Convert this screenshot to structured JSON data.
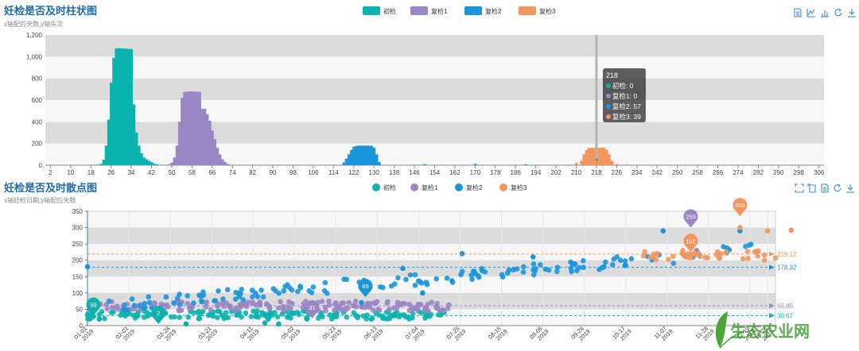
{
  "chart_data": [
    {
      "type": "bar",
      "title": "妊检是否及时柱状图",
      "subtitle": "x轴配后天数,y轴头次",
      "legend": [
        "初检",
        "复检1",
        "复检2",
        "复检3"
      ],
      "legend_position": "top-center",
      "toolbox_icons": [
        "data-view-icon",
        "line-icon",
        "bar-icon",
        "restore-icon",
        "download-icon"
      ],
      "x_ticks": [
        2,
        10,
        18,
        26,
        34,
        42,
        50,
        58,
        66,
        74,
        82,
        90,
        98,
        106,
        114,
        122,
        130,
        138,
        146,
        154,
        162,
        170,
        178,
        186,
        194,
        202,
        210,
        218,
        226,
        234,
        242,
        250,
        258,
        266,
        274,
        282,
        290,
        298,
        306
      ],
      "xlim": [
        0,
        308
      ],
      "ylim": [
        0,
        1200
      ],
      "y_ticks": [
        "0",
        "200",
        "400",
        "600",
        "800",
        "1,000",
        "1,200"
      ],
      "y_tick_values": [
        0,
        200,
        400,
        600,
        800,
        1000,
        1200
      ],
      "series": [
        {
          "name": "初检",
          "color": "#0bb3ae",
          "x": [
            20,
            21,
            22,
            23,
            24,
            25,
            26,
            27,
            28,
            29,
            30,
            31,
            32,
            33,
            34,
            35,
            36,
            37,
            38,
            39,
            40,
            41,
            42,
            43,
            44,
            45
          ],
          "values": [
            2,
            5,
            12,
            50,
            180,
            420,
            760,
            990,
            1075,
            1078,
            1076,
            1074,
            1073,
            1072,
            1070,
            560,
            300,
            180,
            110,
            70,
            55,
            40,
            28,
            15,
            8,
            4
          ]
        },
        {
          "name": "复检1",
          "color": "#9a86c5",
          "x": [
            48,
            49,
            50,
            51,
            52,
            53,
            54,
            55,
            56,
            57,
            58,
            59,
            60,
            61,
            62,
            63,
            64,
            65,
            66,
            67,
            68,
            69,
            70,
            71,
            72,
            73
          ],
          "values": [
            4,
            10,
            25,
            70,
            180,
            400,
            620,
            675,
            678,
            680,
            679,
            678,
            677,
            676,
            520,
            520,
            470,
            410,
            320,
            240,
            160,
            100,
            55,
            30,
            12,
            5
          ]
        },
        {
          "name": "复检2",
          "color": "#1a95dd",
          "x": [
            118,
            119,
            120,
            121,
            122,
            123,
            124,
            125,
            126,
            127,
            128,
            129,
            130,
            131,
            132,
            150,
            170,
            190,
            210,
            214,
            216,
            217,
            218,
            219,
            220,
            221,
            222,
            224,
            230
          ],
          "values": [
            25,
            60,
            100,
            140,
            170,
            178,
            180,
            180,
            180,
            180,
            180,
            178,
            160,
            100,
            30,
            10,
            12,
            8,
            10,
            40,
            57,
            57,
            57,
            57,
            57,
            57,
            40,
            20,
            5
          ]
        },
        {
          "name": "复检3",
          "color": "#f3965e",
          "x": [
            210,
            212,
            213,
            214,
            215,
            216,
            217,
            218,
            219,
            220,
            221,
            222,
            223,
            224,
            226
          ],
          "values": [
            20,
            40,
            100,
            140,
            160,
            160,
            160,
            39,
            160,
            160,
            160,
            140,
            100,
            40,
            10
          ]
        }
      ],
      "tooltip": {
        "header": "218",
        "lines": [
          "初检: 0",
          "复检1: 0",
          "复检2: 57",
          "复检3: 39"
        ]
      }
    },
    {
      "type": "scatter",
      "title": "妊检是否及时散点图",
      "subtitle": "x轴妊检日期,y轴配后天数",
      "legend": [
        "初检",
        "复检1",
        "复检2",
        "复检3"
      ],
      "legend_position": "top-center",
      "toolbox_icons": [
        "zoom-icon",
        "zoom-reset-icon",
        "data-view-icon",
        "restore-icon",
        "download-icon"
      ],
      "ylim": [
        0,
        350
      ],
      "y_ticks": [
        "0",
        "50",
        "100",
        "150",
        "200",
        "250",
        "300",
        "350"
      ],
      "x_ticks": [
        {
          "date": "2019-01-01",
          "l1": "01-01",
          "l2": "2019"
        },
        {
          "date": "2019-01-22",
          "l1": "02-01",
          "l2": "2019"
        },
        {
          "date": "2019-02-12",
          "l1": "02-28",
          "l2": "2019"
        },
        {
          "date": "2019-03-05",
          "l1": "03-21",
          "l2": "2019"
        },
        {
          "date": "2019-03-26",
          "l1": "04-11",
          "l2": "2019"
        },
        {
          "date": "2019-04-16",
          "l1": "05-02",
          "l2": "2019"
        },
        {
          "date": "2019-05-07",
          "l1": "05-23",
          "l2": "2019"
        },
        {
          "date": "2019-05-28",
          "l1": "06-13",
          "l2": "2019"
        },
        {
          "date": "2019-06-18",
          "l1": "07-04",
          "l2": "2019"
        },
        {
          "date": "2019-07-09",
          "l1": "07-25",
          "l2": "2019"
        },
        {
          "date": "2019-07-30",
          "l1": "08-15",
          "l2": "2019"
        },
        {
          "date": "2019-08-20",
          "l1": "09-05",
          "l2": "2019"
        },
        {
          "date": "2019-09-10",
          "l1": "09-26",
          "l2": "2019"
        },
        {
          "date": "2019-10-01",
          "l1": "10-17",
          "l2": "2019"
        },
        {
          "date": "2019-10-22",
          "l1": "11-07",
          "l2": "2019"
        },
        {
          "date": "2019-11-12",
          "l1": "11-28",
          "l2": "2019"
        },
        {
          "date": "2019-12-03",
          "l1": "12-19",
          "l2": "2019"
        },
        {
          "date": "2019-12-12",
          "l1": "12-26",
          "l2": "2019"
        }
      ],
      "x_range": [
        "2019-01-01",
        "2019-12-16"
      ],
      "series": [
        {
          "name": "初检",
          "color": "#0bb3ae",
          "range": [
            "2019-01-01",
            "2019-07-01"
          ],
          "band": [
            20,
            45
          ],
          "points": [
            [
              "2019-01-07",
              20
            ],
            [
              "2019-02-20",
              5
            ],
            [
              "2019-04-01",
              8
            ],
            [
              "2019-04-08",
              5
            ],
            [
              "2019-05-25",
              20
            ]
          ]
        },
        {
          "name": "复检1",
          "color": "#9a86c5",
          "range": [
            "2019-01-01",
            "2019-07-05"
          ],
          "band": [
            45,
            75
          ],
          "points": [
            [
              "2019-11-02",
              260
            ],
            [
              "2019-11-06",
              230
            ]
          ]
        },
        {
          "name": "复检2",
          "color": "#1a95dd",
          "range": [
            "2019-01-10",
            "2019-12-05"
          ],
          "band": [
            50,
            240
          ],
          "points": [
            [
              "2019-05-20",
              70
            ],
            [
              "2019-06-10",
              175
            ],
            [
              "2019-06-20",
              100
            ],
            [
              "2019-07-10",
              220
            ],
            [
              "2019-08-15",
              210
            ],
            [
              "2019-09-20",
              180
            ],
            [
              "2019-10-20",
              290
            ],
            [
              "2019-11-28",
              290
            ],
            [
              "2019-01-01",
              180
            ]
          ]
        },
        {
          "name": "复检3",
          "color": "#f3965e",
          "range": [
            "2019-10-10",
            "2019-12-16"
          ],
          "band": [
            200,
            230
          ],
          "points": [
            [
              "2019-10-17",
              220
            ],
            [
              "2019-11-28",
              300
            ],
            [
              "2019-12-12",
              290
            ],
            [
              "2019-12-24",
              292
            ],
            [
              "2019-11-02",
              260
            ]
          ]
        }
      ],
      "avg_lines": [
        {
          "name": "复检3",
          "value": 219.12,
          "label": "219.12",
          "color": "#f3965e"
        },
        {
          "name": "复检2",
          "value": 178.32,
          "label": "178.32",
          "color": "#1a95dd"
        },
        {
          "name": "复检1",
          "value": 60.85,
          "label": "60.85",
          "color": "#9a86c5"
        },
        {
          "name": "初检",
          "value": 30.67,
          "label": "30.67",
          "color": "#0bb3ae"
        }
      ],
      "markers": [
        {
          "series": "初检",
          "date": "2019-01-04",
          "y": 30,
          "label": "59",
          "color": "#0bb3ae"
        },
        {
          "series": "初检",
          "date": "2019-02-06",
          "y": 5,
          "label": "2",
          "color": "#0bb3ae"
        },
        {
          "series": "复检1",
          "date": "2019-04-25",
          "y": 22,
          "label": "31",
          "color": "#9a86c5"
        },
        {
          "series": "复检2",
          "date": "2019-05-22",
          "y": 87,
          "label": "69",
          "color": "#1a95dd"
        },
        {
          "series": "复检1",
          "date": "2019-11-03",
          "y": 300,
          "label": "259",
          "color": "#9a86c5"
        },
        {
          "series": "复检3",
          "date": "2019-11-03",
          "y": 225,
          "label": "192",
          "color": "#f3965e"
        },
        {
          "series": "复检3",
          "date": "2019-11-28",
          "y": 335,
          "label": "308",
          "color": "#f3965e"
        }
      ]
    }
  ],
  "watermark": {
    "text": "生态农业网"
  }
}
